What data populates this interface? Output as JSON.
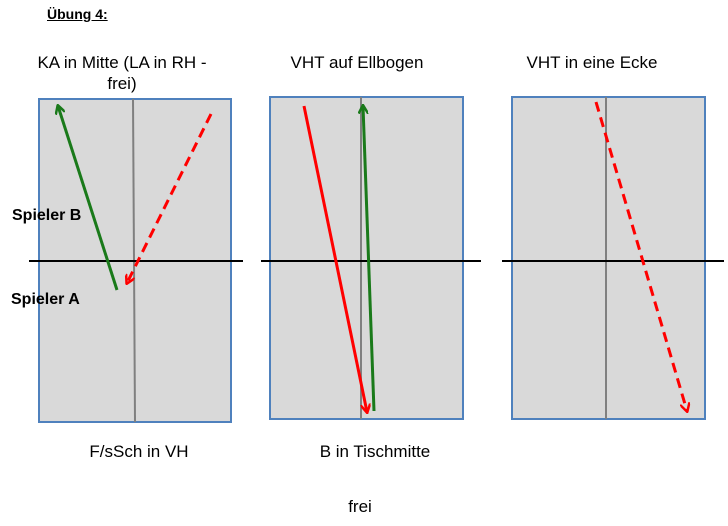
{
  "title": "Übung 4:",
  "columns": [
    {
      "heading_line1": "KA in Mitte (LA in RH -",
      "heading_line2": "frei",
      "heading_line2_suffix": ")",
      "bottom": "F/sSch in VH"
    },
    {
      "heading": "VHT auf Ellbogen",
      "bottom": "B in Tischmitte"
    },
    {
      "heading": "VHT in eine Ecke",
      "bottom": ""
    }
  ],
  "players": {
    "b": "Spieler B",
    "a": "Spieler A"
  },
  "footer": "frei",
  "colors": {
    "table_fill": "#d9d9d9",
    "table_border": "#4f81bd",
    "center_line": "#808080",
    "net": "#000000",
    "green_arrow": "#1a7a1a",
    "red_arrow": "#ff0000"
  }
}
